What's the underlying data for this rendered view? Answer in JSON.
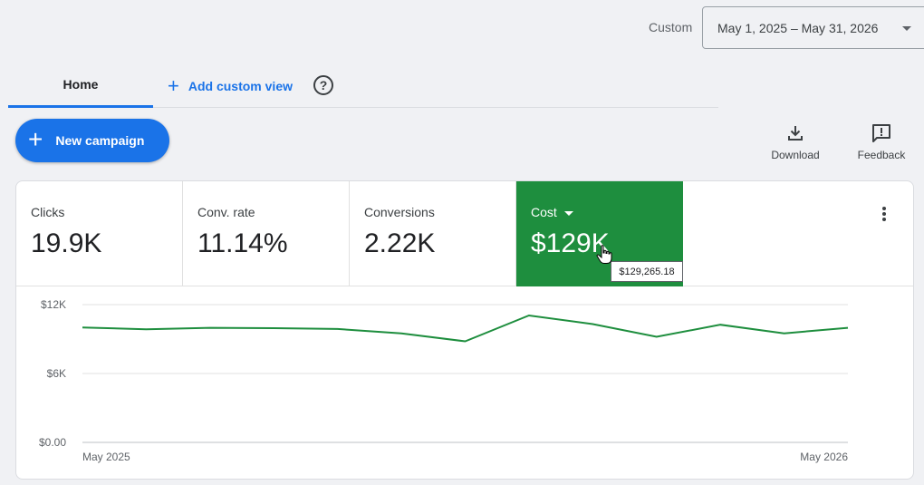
{
  "date_range": {
    "label": "Custom",
    "value": "May 1, 2025 – May 31, 2026"
  },
  "tabs": {
    "home": "Home",
    "add_custom_view": "Add custom view",
    "help_glyph": "?"
  },
  "actions": {
    "new_campaign": "New campaign",
    "download": "Download",
    "feedback": "Feedback"
  },
  "metrics": [
    {
      "label": "Clicks",
      "value": "19.9K"
    },
    {
      "label": "Conv. rate",
      "value": "11.14%"
    },
    {
      "label": "Conversions",
      "value": "2.22K"
    },
    {
      "label": "Cost",
      "value": "$129K",
      "selected": true
    }
  ],
  "tooltip": "$129,265.18",
  "colors": {
    "accent": "#1a73e8",
    "selected_metric": "#1e8e3e",
    "line": "#1e8e3e"
  },
  "chart_data": {
    "type": "line",
    "ylim": [
      0,
      12000
    ],
    "y_ticks": [
      {
        "value": 0,
        "label": "$0.00"
      },
      {
        "value": 6000,
        "label": "$6K"
      },
      {
        "value": 12000,
        "label": "$12K"
      }
    ],
    "x_labels": [
      "May 2025",
      "May 2026"
    ],
    "series": [
      {
        "values": [
          10000,
          9850,
          9980,
          9950,
          9880,
          9500,
          8800,
          11050,
          10300,
          9200,
          10250,
          9500,
          9980
        ]
      }
    ]
  }
}
